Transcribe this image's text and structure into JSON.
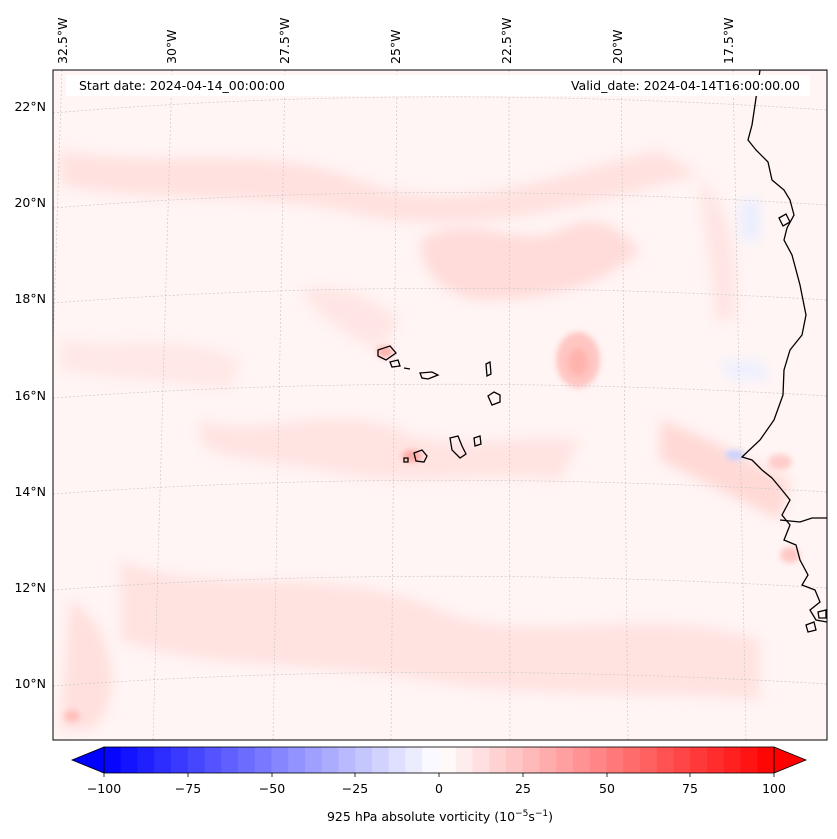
{
  "map": {
    "start_date_label": "Start date: 2024-04-14_00:00:00",
    "valid_date_label": "Valid_date: 2024-04-14T16:00:00.00",
    "lon_labels": [
      "32.5°W",
      "30°W",
      "27.5°W",
      "25°W",
      "22.5°W",
      "20°W",
      "17.5°W"
    ],
    "lat_labels": [
      "22°N",
      "20°N",
      "18°N",
      "16°N",
      "14°N",
      "12°N",
      "10°N"
    ]
  },
  "colorbar": {
    "ticks": [
      "−100",
      "−75",
      "−50",
      "−25",
      "0",
      "25",
      "50",
      "75",
      "100"
    ],
    "label_prefix": "925 hPa absolute vorticity (10",
    "label_exp1": "−5",
    "label_mid": "s",
    "label_exp2": "−1",
    "label_suffix": ")",
    "min_color": "#0000ff",
    "mid_color": "#ffffff",
    "max_color": "#ff0000"
  }
}
